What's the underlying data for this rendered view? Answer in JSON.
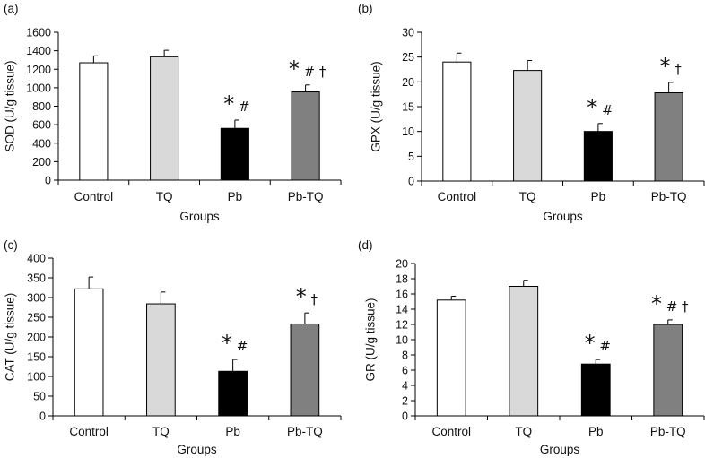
{
  "chart_data": [
    {
      "panel": "(a)",
      "type": "bar",
      "categories": [
        "Control",
        "TQ",
        "Pb",
        "Pb-TQ"
      ],
      "values": [
        1270,
        1335,
        560,
        955
      ],
      "errors": [
        75,
        70,
        90,
        75
      ],
      "annotations": [
        "",
        "",
        "* #",
        "* # †"
      ],
      "ylabel": "SOD (U/g tissue)",
      "xlabel": "Groups",
      "ylim": [
        0,
        1600
      ],
      "yticks": [
        0,
        200,
        400,
        600,
        800,
        1000,
        1200,
        1400,
        1600
      ],
      "colors": [
        "#ffffff",
        "#d9d9d9",
        "#000000",
        "#808080"
      ]
    },
    {
      "panel": "(b)",
      "type": "bar",
      "categories": [
        "Control",
        "TQ",
        "Pb",
        "Pb-TQ"
      ],
      "values": [
        24,
        22.3,
        10,
        17.8
      ],
      "errors": [
        1.8,
        2,
        1.6,
        2.1
      ],
      "annotations": [
        "",
        "",
        "* #",
        "* †"
      ],
      "ylabel": "GPX (U/g tissue)",
      "xlabel": "Groups",
      "ylim": [
        0,
        30
      ],
      "yticks": [
        0,
        5,
        10,
        15,
        20,
        25,
        30
      ],
      "colors": [
        "#ffffff",
        "#d9d9d9",
        "#000000",
        "#808080"
      ]
    },
    {
      "panel": "(c)",
      "type": "bar",
      "categories": [
        "Control",
        "TQ",
        "Pb",
        "Pb-TQ"
      ],
      "values": [
        322,
        284,
        113,
        233
      ],
      "errors": [
        30,
        30,
        30,
        28
      ],
      "annotations": [
        "",
        "",
        "* #",
        "* †"
      ],
      "ylabel": "CAT (U/g tissue)",
      "xlabel": "Groups",
      "ylim": [
        0,
        400
      ],
      "yticks": [
        0,
        50,
        100,
        150,
        200,
        250,
        300,
        350,
        400
      ],
      "colors": [
        "#ffffff",
        "#d9d9d9",
        "#000000",
        "#808080"
      ]
    },
    {
      "panel": "(d)",
      "type": "bar",
      "categories": [
        "Control",
        "TQ",
        "Pb",
        "Pb-TQ"
      ],
      "values": [
        15.2,
        17,
        6.8,
        12
      ],
      "errors": [
        0.5,
        0.8,
        0.6,
        0.6
      ],
      "annotations": [
        "",
        "",
        "* #",
        "* # †"
      ],
      "ylabel": "GR (U/g tissue)",
      "xlabel": "Groups",
      "ylim": [
        0,
        20
      ],
      "yticks": [
        0,
        2,
        4,
        6,
        8,
        10,
        12,
        14,
        16,
        18,
        20
      ],
      "colors": [
        "#ffffff",
        "#d9d9d9",
        "#000000",
        "#808080"
      ]
    }
  ]
}
